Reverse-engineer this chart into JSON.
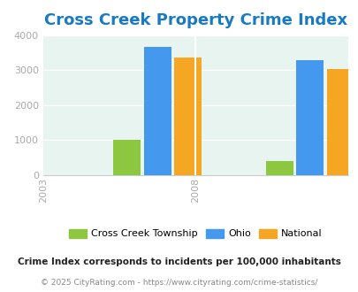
{
  "title": "Cross Creek Property Crime Index",
  "title_color": "#1a7abf",
  "years": [
    "2003",
    "2008"
  ],
  "cross_creek": [
    1020,
    410
  ],
  "ohio": [
    3670,
    3290
  ],
  "national": [
    3360,
    3040
  ],
  "bar_colors": {
    "cross_creek": "#8dc63f",
    "ohio": "#4499ee",
    "national": "#f5a623"
  },
  "legend_labels": [
    "Cross Creek Township",
    "Ohio",
    "National"
  ],
  "ylim": [
    0,
    4000
  ],
  "yticks": [
    0,
    1000,
    2000,
    3000,
    4000
  ],
  "bg_color": "#e8f4f0",
  "footnote1": "Crime Index corresponds to incidents per 100,000 inhabitants",
  "footnote2": "© 2025 CityRating.com - https://www.cityrating.com/crime-statistics/",
  "footnote1_color": "#222222",
  "footnote2_color": "#888888",
  "title_fontsize": 13,
  "tick_color": "#aaaaaa"
}
